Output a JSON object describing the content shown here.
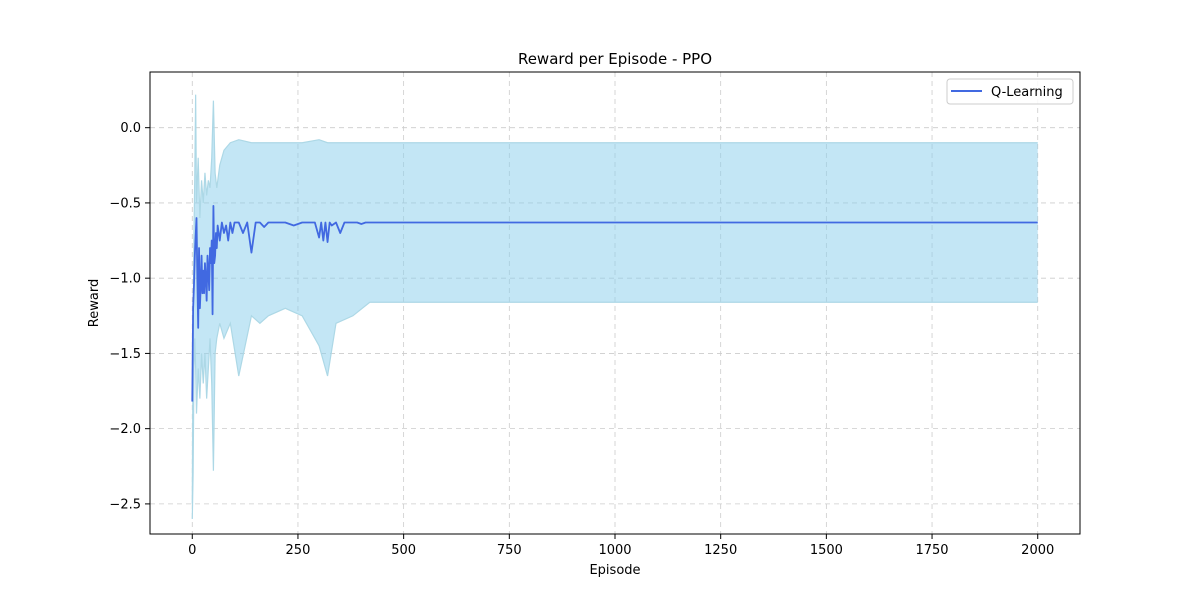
{
  "chart_data": {
    "type": "line",
    "title": "Reward per Episode - PPO",
    "xlabel": "Episode",
    "ylabel": "Reward",
    "xlim": [
      -100,
      2100
    ],
    "ylim": [
      -2.7,
      0.37
    ],
    "x_ticks": [
      0,
      250,
      500,
      750,
      1000,
      1250,
      1500,
      1750,
      2000
    ],
    "x_tick_labels": [
      "0",
      "250",
      "500",
      "750",
      "1000",
      "1250",
      "1500",
      "1750",
      "2000"
    ],
    "y_ticks": [
      0.0,
      -0.5,
      -1.0,
      -1.5,
      -2.0,
      -2.5
    ],
    "y_tick_labels": [
      "0.0",
      "−0.5",
      "−1.0",
      "−1.5",
      "−2.0",
      "−2.5"
    ],
    "grid": true,
    "legend_position": "top-right",
    "legend_entries": [
      "Q-Learning"
    ],
    "colors": {
      "line": "#4169e1",
      "band": "#87ceeb",
      "spikes": "#add8e6",
      "grid": "#cccccc"
    },
    "series": [
      {
        "name": "Q-Learning",
        "x": [
          0,
          2,
          4,
          6,
          8,
          10,
          12,
          14,
          16,
          18,
          20,
          22,
          24,
          26,
          28,
          30,
          32,
          34,
          36,
          38,
          40,
          42,
          44,
          46,
          48,
          50,
          52,
          54,
          56,
          58,
          60,
          65,
          70,
          75,
          80,
          85,
          90,
          95,
          100,
          110,
          120,
          130,
          140,
          150,
          160,
          170,
          180,
          200,
          220,
          240,
          260,
          280,
          290,
          300,
          305,
          310,
          315,
          320,
          325,
          330,
          340,
          350,
          360,
          370,
          380,
          390,
          400,
          410,
          420,
          500,
          750,
          1000,
          1250,
          1500,
          1750,
          2000
        ],
        "y": [
          -1.82,
          -1.2,
          -1.05,
          -0.85,
          -0.72,
          -0.6,
          -1.0,
          -1.33,
          -0.8,
          -1.2,
          -1.05,
          -0.85,
          -1.1,
          -0.95,
          -1.1,
          -0.9,
          -1.0,
          -1.15,
          -0.85,
          -0.95,
          -1.08,
          -0.8,
          -0.9,
          -0.75,
          -1.24,
          -0.52,
          -0.9,
          -0.85,
          -0.7,
          -0.8,
          -0.65,
          -0.75,
          -0.63,
          -0.7,
          -0.65,
          -0.75,
          -0.63,
          -0.7,
          -0.63,
          -0.63,
          -0.7,
          -0.63,
          -0.83,
          -0.63,
          -0.63,
          -0.66,
          -0.63,
          -0.63,
          -0.63,
          -0.65,
          -0.63,
          -0.63,
          -0.63,
          -0.73,
          -0.63,
          -0.75,
          -0.63,
          -0.76,
          -0.63,
          -0.65,
          -0.63,
          -0.7,
          -0.63,
          -0.63,
          -0.63,
          -0.63,
          -0.64,
          -0.63,
          -0.63,
          -0.63,
          -0.63,
          -0.63,
          -0.63,
          -0.63,
          -0.63,
          -0.63
        ]
      }
    ],
    "band": {
      "x": [
        0,
        2,
        4,
        6,
        8,
        10,
        14,
        18,
        22,
        26,
        30,
        34,
        38,
        42,
        46,
        50,
        54,
        58,
        65,
        75,
        90,
        110,
        140,
        160,
        180,
        220,
        260,
        300,
        320,
        340,
        380,
        420,
        500,
        1000,
        1500,
        2000
      ],
      "upper": [
        -2.5,
        -1.3,
        -0.7,
        -0.3,
        0.22,
        -0.5,
        -0.2,
        -0.6,
        -0.35,
        -0.5,
        -0.3,
        -0.45,
        -0.35,
        -0.4,
        -0.2,
        0.18,
        -0.3,
        -0.4,
        -0.25,
        -0.15,
        -0.1,
        -0.08,
        -0.1,
        -0.1,
        -0.1,
        -0.1,
        -0.1,
        -0.08,
        -0.1,
        -0.1,
        -0.1,
        -0.1,
        -0.1,
        -0.1,
        -0.1,
        -0.1
      ],
      "lower": [
        -2.6,
        -2.3,
        -1.6,
        -1.4,
        -1.6,
        -1.9,
        -1.6,
        -1.8,
        -1.5,
        -1.7,
        -1.5,
        -1.8,
        -1.6,
        -1.4,
        -1.7,
        -2.28,
        -1.5,
        -1.4,
        -1.3,
        -1.4,
        -1.3,
        -1.65,
        -1.25,
        -1.3,
        -1.25,
        -1.2,
        -1.25,
        -1.45,
        -1.65,
        -1.3,
        -1.25,
        -1.16,
        -1.16,
        -1.16,
        -1.16,
        -1.16
      ]
    }
  }
}
